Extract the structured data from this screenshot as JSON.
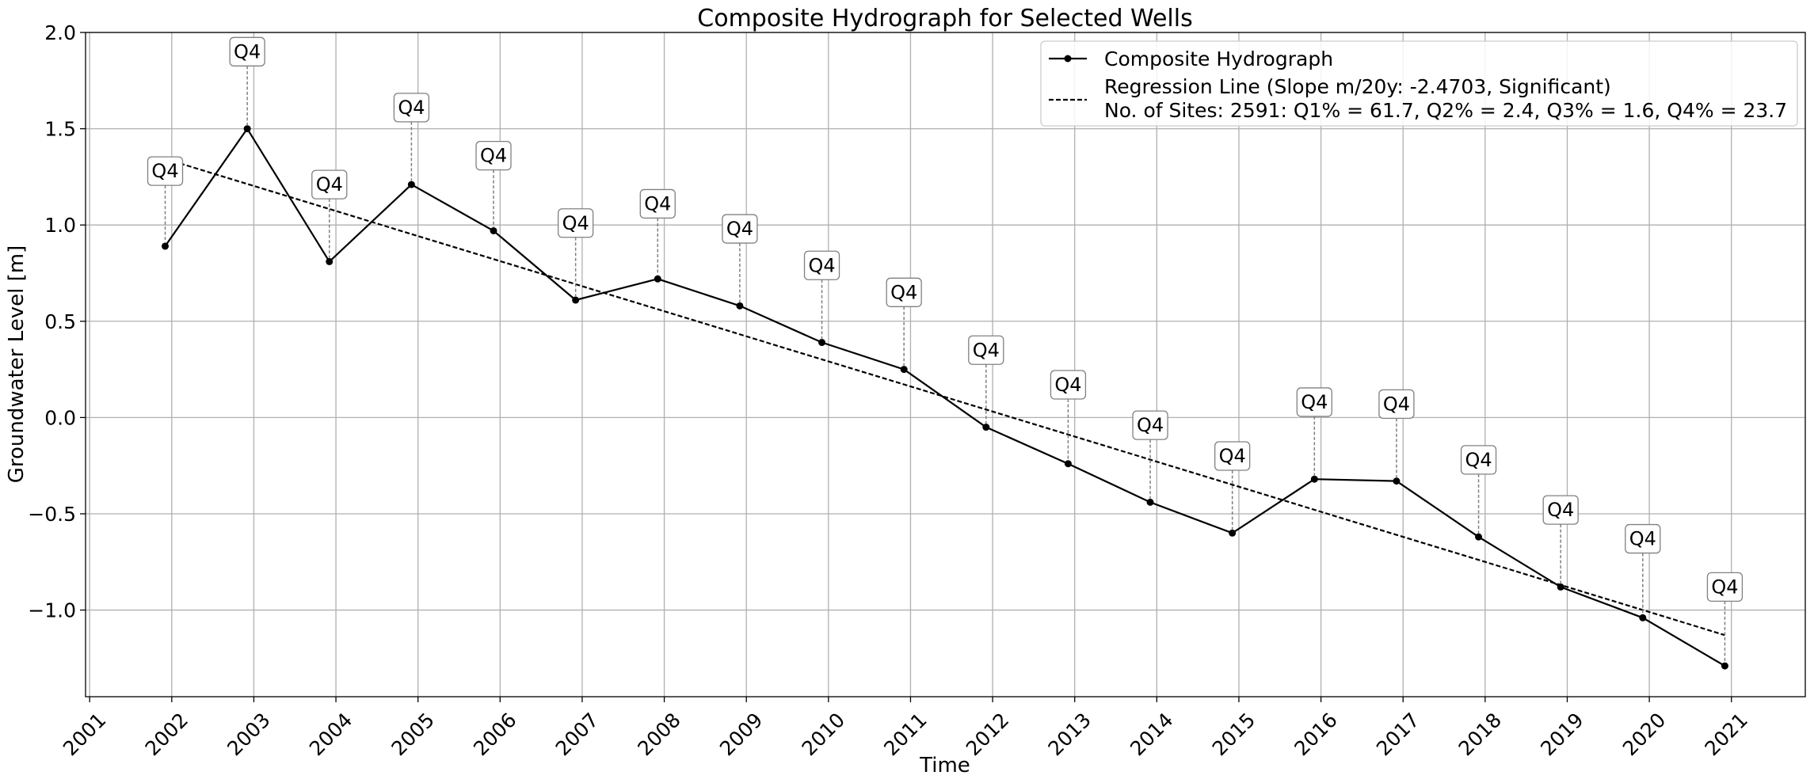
{
  "chart_data": {
    "type": "line",
    "title": "Composite Hydrograph for Selected Wells",
    "xlabel": "Time",
    "ylabel": "Groundwater Level [m]",
    "xlim": [
      2000.95,
      2021.9
    ],
    "ylim": [
      -1.45,
      2.0
    ],
    "x_ticks": [
      "2001",
      "2002",
      "2003",
      "2004",
      "2005",
      "2006",
      "2007",
      "2008",
      "2009",
      "2010",
      "2011",
      "2012",
      "2013",
      "2014",
      "2015",
      "2016",
      "2017",
      "2018",
      "2019",
      "2020",
      "2021"
    ],
    "y_ticks": [
      {
        "value": 2.0,
        "label": "2.0"
      },
      {
        "value": 1.5,
        "label": "1.5"
      },
      {
        "value": 1.0,
        "label": "1.0"
      },
      {
        "value": 0.5,
        "label": "0.5"
      },
      {
        "value": 0.0,
        "label": "0.0"
      },
      {
        "value": -0.5,
        "label": "−0.5"
      },
      {
        "value": -1.0,
        "label": "−1.0"
      }
    ],
    "grid": true,
    "series": [
      {
        "name": "Composite Hydrograph",
        "style": "solid-with-markers",
        "color": "#000000",
        "x": [
          2001.92,
          2002.92,
          2003.92,
          2004.92,
          2005.92,
          2006.92,
          2007.92,
          2008.92,
          2009.92,
          2010.92,
          2011.92,
          2012.92,
          2013.92,
          2014.92,
          2015.92,
          2016.92,
          2017.92,
          2018.92,
          2019.92,
          2020.92
        ],
        "values": [
          0.89,
          1.5,
          0.81,
          1.21,
          0.97,
          0.61,
          0.72,
          0.58,
          0.39,
          0.25,
          -0.05,
          -0.24,
          -0.44,
          -0.6,
          -0.32,
          -0.33,
          -0.62,
          -0.88,
          -1.04,
          -1.29
        ]
      },
      {
        "name": "Regression Line (Slope m/20y: -2.4703, Significant)",
        "style": "dashed",
        "color": "#000000",
        "x": [
          2002.1,
          2020.92
        ],
        "values": [
          1.32,
          -1.13
        ]
      }
    ],
    "annotations": {
      "label": "Q4",
      "x": [
        2001.92,
        2002.92,
        2003.92,
        2004.92,
        2005.92,
        2006.92,
        2007.92,
        2008.92,
        2009.92,
        2010.92,
        2011.92,
        2012.92,
        2013.92,
        2014.92,
        2015.92,
        2016.92,
        2017.92,
        2018.92,
        2019.92,
        2020.92
      ],
      "y": [
        1.28,
        1.9,
        1.21,
        1.61,
        1.36,
        1.01,
        1.11,
        0.98,
        0.79,
        0.65,
        0.35,
        0.17,
        -0.04,
        -0.2,
        0.08,
        0.07,
        -0.22,
        -0.48,
        -0.63,
        -0.88
      ]
    },
    "legend": {
      "placement": "top-right",
      "entries": [
        "Composite Hydrograph",
        "Regression Line (Slope m/20y: -2.4703, Significant)"
      ],
      "extra_text": "No. of Sites: 2591: Q1% = 61.7, Q2% = 2.4, Q3% = 1.6, Q4% = 23.7"
    }
  }
}
